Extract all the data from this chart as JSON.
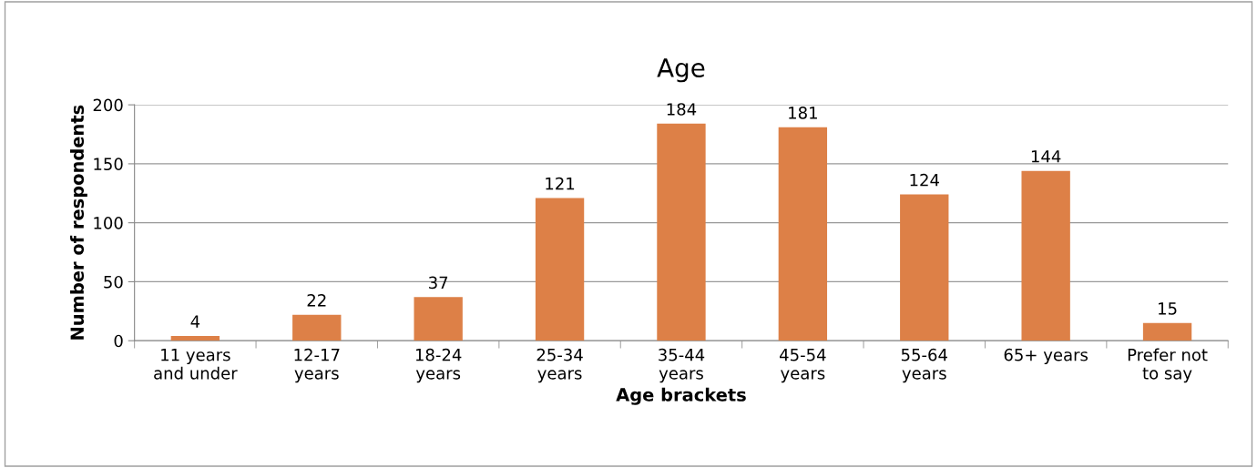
{
  "chart_data": {
    "type": "bar",
    "title": "Age",
    "xlabel": "Age brackets",
    "ylabel": "Number of respondents",
    "categories": [
      "11 years\nand under",
      "12-17\nyears",
      "18-24\nyears",
      "25-34\nyears",
      "35-44\nyears",
      "45-54\nyears",
      "55-64\nyears",
      "65+ years",
      "Prefer not\nto say"
    ],
    "values": [
      4,
      22,
      37,
      121,
      184,
      181,
      124,
      144,
      15
    ],
    "color": "#dd8047",
    "ylim": [
      0,
      200
    ],
    "yticks": [
      0,
      50,
      100,
      150,
      200
    ],
    "grid": "y",
    "data_labels": true,
    "legend": false
  }
}
